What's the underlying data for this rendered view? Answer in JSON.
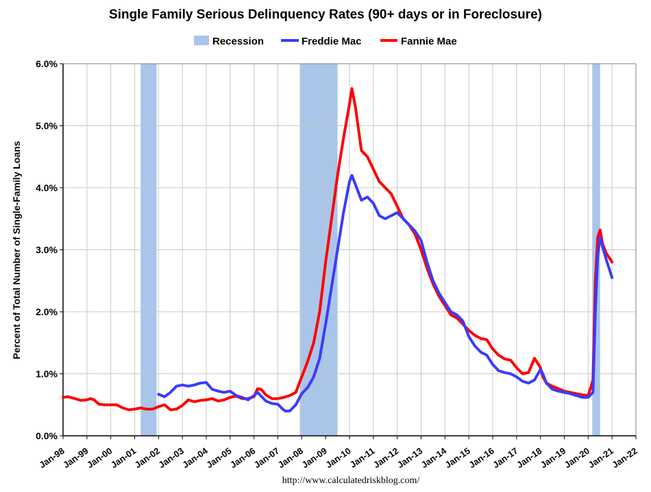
{
  "chart_data": {
    "type": "line",
    "title": "Single Family Serious Delinquency Rates (90+ days or in Foreclosure)",
    "ylabel": "Percent of Total Number of Single-Family Loans",
    "xlabel": "",
    "source": "http://www.calculatedriskblog.com/",
    "ylim": [
      0,
      6
    ],
    "xlim": [
      1998.0,
      2022.0
    ],
    "yticks": [
      "0.0%",
      "1.0%",
      "2.0%",
      "3.0%",
      "4.0%",
      "5.0%",
      "6.0%"
    ],
    "xticks": [
      "Jan-98",
      "Jan-99",
      "Jan-00",
      "Jan-01",
      "Jan-02",
      "Jan-03",
      "Jan-04",
      "Jan-05",
      "Jan-06",
      "Jan-07",
      "Jan-08",
      "Jan-09",
      "Jan-10",
      "Jan-11",
      "Jan-12",
      "Jan-13",
      "Jan-14",
      "Jan-15",
      "Jan-16",
      "Jan-17",
      "Jan-18",
      "Jan-19",
      "Jan-20",
      "Jan-21",
      "Jan-22"
    ],
    "grid": true,
    "legend_position": "top",
    "legend": [
      {
        "name": "Recession",
        "color": "#a9c5ea",
        "kind": "band"
      },
      {
        "name": "Freddie Mac",
        "color": "#3b3bff",
        "kind": "line"
      },
      {
        "name": "Fannie Mae",
        "color": "#ff0000",
        "kind": "line"
      }
    ],
    "recessions": [
      [
        2001.25,
        2001.92
      ],
      [
        2007.92,
        2009.5
      ],
      [
        2020.17,
        2020.5
      ]
    ],
    "series": [
      {
        "name": "Fannie Mae",
        "color": "#ff0000",
        "x": [
          1998.0,
          1998.2,
          1998.5,
          1998.75,
          1999.0,
          1999.15,
          1999.3,
          1999.5,
          1999.75,
          2000.0,
          2000.25,
          2000.5,
          2000.75,
          2001.0,
          2001.25,
          2001.5,
          2001.75,
          2002.0,
          2002.25,
          2002.5,
          2002.75,
          2003.0,
          2003.25,
          2003.5,
          2003.75,
          2004.0,
          2004.25,
          2004.5,
          2004.75,
          2005.0,
          2005.25,
          2005.5,
          2005.75,
          2006.0,
          2006.15,
          2006.3,
          2006.5,
          2006.75,
          2007.0,
          2007.25,
          2007.5,
          2007.75,
          2008.0,
          2008.25,
          2008.5,
          2008.75,
          2009.0,
          2009.25,
          2009.5,
          2009.75,
          2010.0,
          2010.1,
          2010.25,
          2010.5,
          2010.75,
          2011.0,
          2011.25,
          2011.5,
          2011.75,
          2012.0,
          2012.25,
          2012.5,
          2012.75,
          2013.0,
          2013.25,
          2013.5,
          2013.75,
          2014.0,
          2014.25,
          2014.5,
          2014.75,
          2015.0,
          2015.25,
          2015.5,
          2015.75,
          2016.0,
          2016.25,
          2016.5,
          2016.75,
          2017.0,
          2017.25,
          2017.5,
          2017.75,
          2018.0,
          2018.1,
          2018.25,
          2018.5,
          2018.75,
          2019.0,
          2019.25,
          2019.5,
          2019.75,
          2020.0,
          2020.2,
          2020.3,
          2020.4,
          2020.5,
          2020.6,
          2020.75,
          2021.0
        ],
        "values": [
          0.62,
          0.63,
          0.6,
          0.57,
          0.58,
          0.6,
          0.58,
          0.51,
          0.5,
          0.5,
          0.5,
          0.45,
          0.42,
          0.43,
          0.45,
          0.43,
          0.43,
          0.47,
          0.5,
          0.42,
          0.43,
          0.49,
          0.58,
          0.55,
          0.57,
          0.58,
          0.6,
          0.56,
          0.58,
          0.62,
          0.64,
          0.6,
          0.6,
          0.63,
          0.76,
          0.75,
          0.66,
          0.6,
          0.6,
          0.62,
          0.65,
          0.7,
          0.95,
          1.2,
          1.5,
          2.0,
          2.8,
          3.5,
          4.2,
          4.8,
          5.35,
          5.6,
          5.3,
          4.6,
          4.5,
          4.3,
          4.1,
          4.0,
          3.9,
          3.7,
          3.5,
          3.4,
          3.25,
          3.0,
          2.7,
          2.45,
          2.25,
          2.1,
          1.95,
          1.9,
          1.8,
          1.7,
          1.62,
          1.57,
          1.55,
          1.4,
          1.3,
          1.24,
          1.22,
          1.1,
          1.0,
          1.02,
          1.25,
          1.1,
          0.95,
          0.85,
          0.8,
          0.76,
          0.72,
          0.7,
          0.68,
          0.66,
          0.65,
          0.9,
          2.5,
          3.2,
          3.32,
          3.1,
          2.95,
          2.8
        ]
      },
      {
        "name": "Freddie Mac",
        "color": "#3b3bff",
        "x": [
          2001.0,
          2002.0,
          2002.25,
          2002.5,
          2002.75,
          2003.0,
          2003.25,
          2003.5,
          2003.75,
          2004.0,
          2004.25,
          2004.5,
          2004.75,
          2005.0,
          2005.25,
          2005.5,
          2005.75,
          2006.0,
          2006.15,
          2006.3,
          2006.5,
          2006.75,
          2007.0,
          2007.15,
          2007.3,
          2007.5,
          2007.75,
          2008.0,
          2008.25,
          2008.5,
          2008.75,
          2009.0,
          2009.25,
          2009.5,
          2009.75,
          2010.0,
          2010.1,
          2010.25,
          2010.5,
          2010.75,
          2011.0,
          2011.25,
          2011.5,
          2011.75,
          2012.0,
          2012.25,
          2012.5,
          2012.75,
          2013.0,
          2013.25,
          2013.5,
          2013.75,
          2014.0,
          2014.25,
          2014.5,
          2014.75,
          2015.0,
          2015.25,
          2015.5,
          2015.75,
          2016.0,
          2016.25,
          2016.5,
          2016.75,
          2017.0,
          2017.25,
          2017.5,
          2017.75,
          2018.0,
          2018.1,
          2018.25,
          2018.5,
          2018.75,
          2019.0,
          2019.25,
          2019.5,
          2019.75,
          2020.0,
          2020.2,
          2020.3,
          2020.4,
          2020.5,
          2020.6,
          2020.75,
          2021.0
        ],
        "values": [
          null,
          0.67,
          0.63,
          0.7,
          0.8,
          0.82,
          0.8,
          0.82,
          0.85,
          0.86,
          0.75,
          0.72,
          0.7,
          0.72,
          0.65,
          0.62,
          0.58,
          0.65,
          0.7,
          0.64,
          0.56,
          0.52,
          0.51,
          0.45,
          0.4,
          0.4,
          0.5,
          0.68,
          0.78,
          0.95,
          1.25,
          1.8,
          2.4,
          3.0,
          3.6,
          4.1,
          4.2,
          4.05,
          3.8,
          3.85,
          3.75,
          3.55,
          3.5,
          3.55,
          3.6,
          3.5,
          3.4,
          3.3,
          3.15,
          2.8,
          2.5,
          2.3,
          2.15,
          2.0,
          1.95,
          1.85,
          1.6,
          1.45,
          1.35,
          1.3,
          1.15,
          1.05,
          1.02,
          1.0,
          0.95,
          0.88,
          0.85,
          0.9,
          1.07,
          1.0,
          0.85,
          0.75,
          0.72,
          0.7,
          0.68,
          0.65,
          0.62,
          0.62,
          0.7,
          2.0,
          2.9,
          3.2,
          3.05,
          2.85,
          2.55
        ]
      }
    ]
  }
}
